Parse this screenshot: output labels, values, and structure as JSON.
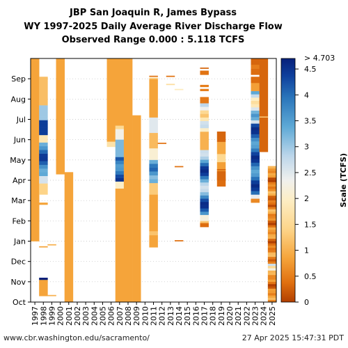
{
  "header": {
    "line1": "JBP San Joaquin R, James Bypass",
    "line2": "WY 1997-2025 Daily Average River Discharge Flow",
    "line3": "Observed Range 0.000 : 5.118 TCFS"
  },
  "footer": {
    "left": "www.cbr.washington.edu/sacramento/",
    "right": "27 Apr 2025 15:47:31 PDT"
  },
  "chart_data": {
    "type": "heatmap",
    "title": "JBP San Joaquin R, James Bypass WY 1997-2025 Daily Average River Discharge Flow",
    "years": [
      "1997",
      "1998",
      "1999",
      "2000",
      "2001",
      "2002",
      "2003",
      "2004",
      "2005",
      "2006",
      "2007",
      "2008",
      "2009",
      "2010",
      "2011",
      "2012",
      "2013",
      "2014",
      "2015",
      "2016",
      "2017",
      "2018",
      "2019",
      "2020",
      "2021",
      "2022",
      "2023",
      "2024",
      "2025"
    ],
    "months": [
      "Oct",
      "Nov",
      "Dec",
      "Jan",
      "Feb",
      "Mar",
      "Apr",
      "May",
      "Jun",
      "Jul",
      "Aug",
      "Sep"
    ],
    "colorbar": {
      "label": "Scale (TCFS)",
      "min": 0,
      "max": 4.703,
      "over_label": "> 4.703",
      "ticks": [
        "0",
        "0.5",
        "1",
        "1.5",
        "2",
        "2.5",
        "3",
        "3.5",
        "4",
        "4.5"
      ]
    },
    "observed_range": [
      0.0,
      5.118
    ],
    "grid": true,
    "series_summary": [
      {
        "year": "1997",
        "months_with_flow": "Jan-Sep (tail of WY)",
        "typical_tcfs": 0.9
      },
      {
        "year": "1998",
        "months_with_flow": "Nov, Jan-Sep",
        "peak_tcfs": 4.7
      },
      {
        "year": "2000",
        "months_with_flow": "Apr-Sep",
        "typical_tcfs": 0.9
      },
      {
        "year": "2001",
        "months_with_flow": "Oct-Apr",
        "typical_tcfs": 0.9
      },
      {
        "year": "2006",
        "months_with_flow": "Jun-Sep",
        "typical_tcfs": 0.9
      },
      {
        "year": "2007",
        "months_with_flow": "Oct-Sep",
        "peak_tcfs": 4.3
      },
      {
        "year": "2008",
        "months_with_flow": "Oct-Sep",
        "typical_tcfs": 0.9
      },
      {
        "year": "2009",
        "months_with_flow": "Oct-Jul",
        "typical_tcfs": 0.9
      },
      {
        "year": "2011",
        "months_with_flow": "Jan-Sep",
        "peak_tcfs": 4.0
      },
      {
        "year": "2017",
        "months_with_flow": "Feb-Sep",
        "peak_tcfs": 4.6
      },
      {
        "year": "2019",
        "months_with_flow": "Apr-Jul",
        "peak_tcfs": 1.5
      },
      {
        "year": "2023",
        "months_with_flow": "Mar-Sep",
        "peak_tcfs": 4.5
      },
      {
        "year": "2024",
        "months_with_flow": "Jun-Sep",
        "typical_tcfs": 0.3
      },
      {
        "year": "2025",
        "months_with_flow": "Oct-Apr",
        "typical_tcfs": 0.6
      }
    ]
  }
}
